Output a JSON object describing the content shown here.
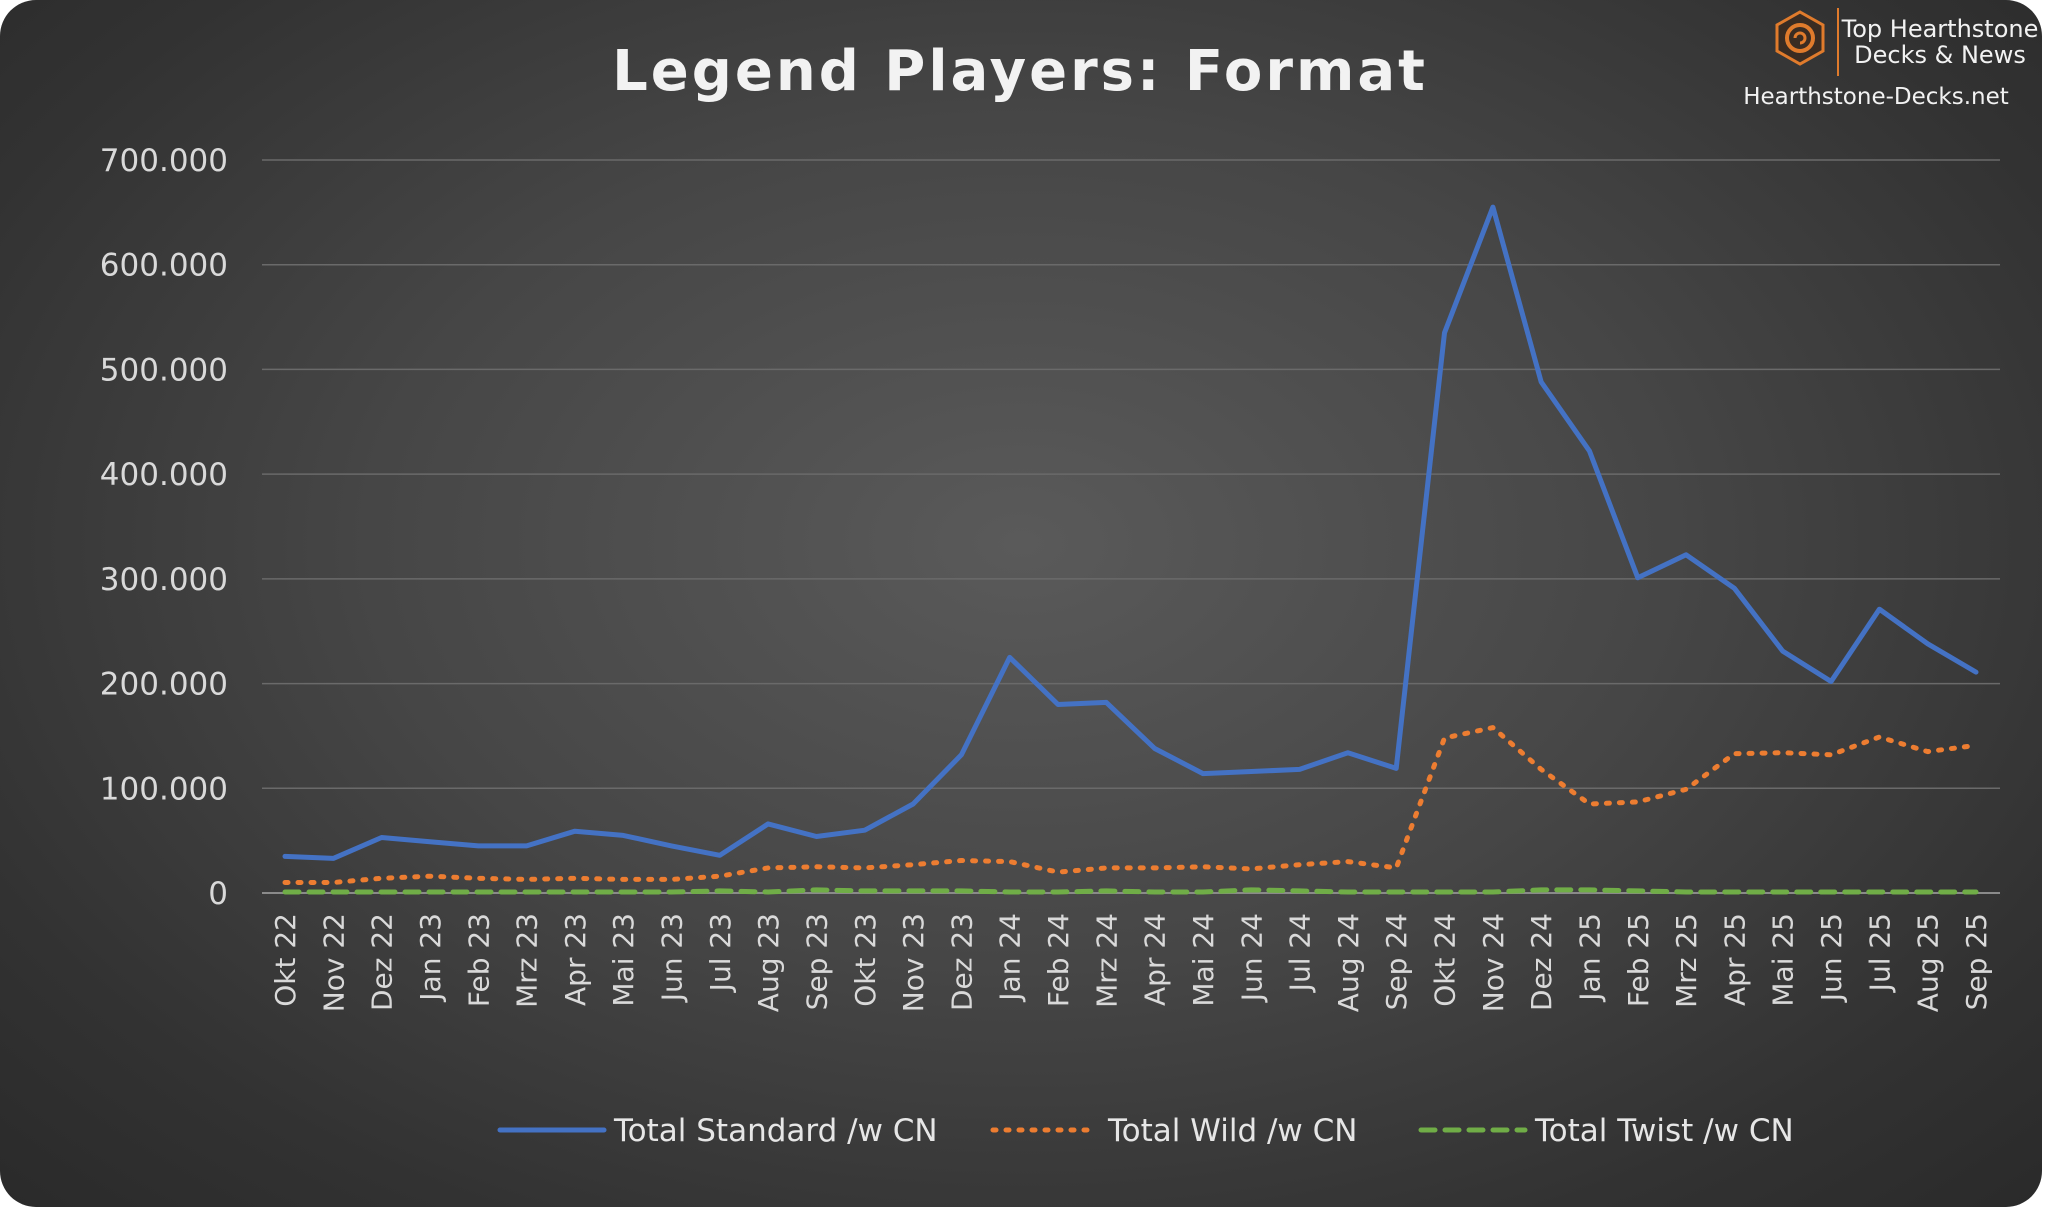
{
  "logo": {
    "line1": "Top Hearthstone",
    "line2": "Decks & News",
    "site": "Hearthstone-Decks.net",
    "icon": "hearthstone-swirl-icon"
  },
  "colors": {
    "background": "#3f3f3f",
    "grid": "#6a6a6a",
    "standard": "#4472C4",
    "wild": "#ED7D31",
    "twist": "#70AD47",
    "text": "#d9d9d9",
    "logo_accent": "#E07B2C"
  },
  "chart_data": {
    "type": "line",
    "title": "Legend Players: Format",
    "xlabel": "",
    "ylabel": "",
    "ylim": [
      0,
      700000
    ],
    "yticks": [
      0,
      100000,
      200000,
      300000,
      400000,
      500000,
      600000,
      700000
    ],
    "ytick_labels": [
      "0",
      "100.000",
      "200.000",
      "300.000",
      "400.000",
      "500.000",
      "600.000",
      "700.000"
    ],
    "grid": true,
    "legend_position": "bottom",
    "categories": [
      "Okt 22",
      "Nov 22",
      "Dez 22",
      "Jan 23",
      "Feb 23",
      "Mrz 23",
      "Apr 23",
      "Mai 23",
      "Jun 23",
      "Jul 23",
      "Aug 23",
      "Sep 23",
      "Okt 23",
      "Nov 23",
      "Dez 23",
      "Jan 24",
      "Feb 24",
      "Mrz 24",
      "Apr 24",
      "Mai 24",
      "Jun 24",
      "Jul 24",
      "Aug 24",
      "Sep 24",
      "Okt 24",
      "Nov 24",
      "Dez 24",
      "Jan 25",
      "Feb 25",
      "Mrz 25",
      "Apr 25",
      "Mai 25",
      "Jun 25",
      "Jul 25",
      "Aug 25",
      "Sep 25"
    ],
    "series": [
      {
        "name": "Total Standard /w CN",
        "style": "solid",
        "color": "#4472C4",
        "values": [
          35000,
          33000,
          53000,
          49000,
          45000,
          45000,
          59000,
          55000,
          45000,
          36000,
          66000,
          54000,
          60000,
          85000,
          132000,
          225000,
          180000,
          182000,
          138000,
          114000,
          116000,
          118000,
          134000,
          119000,
          535000,
          655000,
          488000,
          422000,
          301000,
          323000,
          291000,
          231000,
          202000,
          271000,
          238000,
          211000
        ]
      },
      {
        "name": "Total Wild /w CN",
        "style": "dotted",
        "color": "#ED7D31",
        "values": [
          10000,
          10000,
          14000,
          16000,
          14000,
          13000,
          14000,
          13000,
          13000,
          16000,
          24000,
          25000,
          24000,
          27000,
          31000,
          30000,
          20000,
          24000,
          24000,
          25000,
          23000,
          27000,
          30000,
          24000,
          148000,
          158000,
          118000,
          85000,
          87000,
          99000,
          133000,
          134000,
          132000,
          149000,
          135000,
          141000
        ]
      },
      {
        "name": "Total Twist /w CN",
        "style": "dashed",
        "color": "#70AD47",
        "values": [
          1000,
          1000,
          1000,
          1000,
          1000,
          1000,
          1000,
          1000,
          1000,
          2000,
          1000,
          3000,
          2000,
          2000,
          2000,
          1000,
          1000,
          2000,
          1000,
          1000,
          3000,
          2000,
          1000,
          1000,
          1000,
          1000,
          3000,
          3000,
          2000,
          1000,
          1000,
          1000,
          1000,
          1000,
          1000,
          1000
        ]
      }
    ]
  }
}
